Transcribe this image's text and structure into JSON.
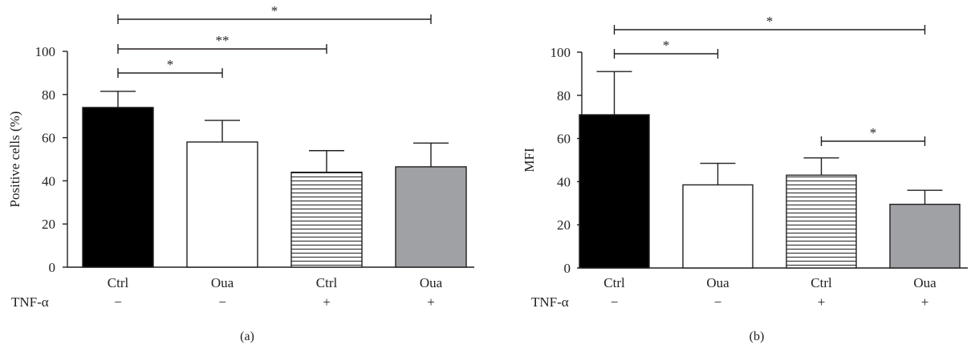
{
  "chart_data": [
    {
      "type": "bar",
      "panel_label": "(a)",
      "ylabel": "Positive cells (%)",
      "ylim": [
        0,
        100
      ],
      "yticks": [
        0,
        20,
        40,
        60,
        80,
        100
      ],
      "categories": [
        "Ctrl",
        "Oua",
        "Ctrl",
        "Oua"
      ],
      "values": [
        74,
        58,
        44,
        46.5
      ],
      "errors": [
        7.5,
        10,
        10,
        11
      ],
      "fills": [
        "solid-black",
        "white",
        "horizontal-stripes",
        "gray"
      ],
      "tnf": {
        "label": "TNF-α",
        "values": [
          "−",
          "−",
          "+",
          "+"
        ]
      },
      "significance": [
        {
          "from": 0,
          "to": 1,
          "label": "*"
        },
        {
          "from": 0,
          "to": 2,
          "label": "**"
        },
        {
          "from": 0,
          "to": 3,
          "label": "*"
        }
      ]
    },
    {
      "type": "bar",
      "panel_label": "(b)",
      "ylabel": "MFI",
      "ylim": [
        0,
        100
      ],
      "yticks": [
        0,
        20,
        40,
        60,
        80,
        100
      ],
      "categories": [
        "Ctrl",
        "Oua",
        "Ctrl",
        "Oua"
      ],
      "values": [
        71,
        38.5,
        43,
        29.5
      ],
      "errors": [
        20,
        10,
        8,
        6.5
      ],
      "fills": [
        "solid-black",
        "white",
        "horizontal-stripes",
        "gray"
      ],
      "tnf": {
        "label": "TNF-α",
        "values": [
          "−",
          "−",
          "+",
          "+"
        ]
      },
      "significance": [
        {
          "from": 0,
          "to": 1,
          "label": "*"
        },
        {
          "from": 0,
          "to": 3,
          "label": "*"
        },
        {
          "from": 2,
          "to": 3,
          "label": "*"
        }
      ]
    }
  ],
  "colors": {
    "ink": "#231f20",
    "black_bar": "#000000",
    "white_bar": "#ffffff",
    "gray_bar": "#a0a1a4",
    "stripe": "#231f20"
  }
}
